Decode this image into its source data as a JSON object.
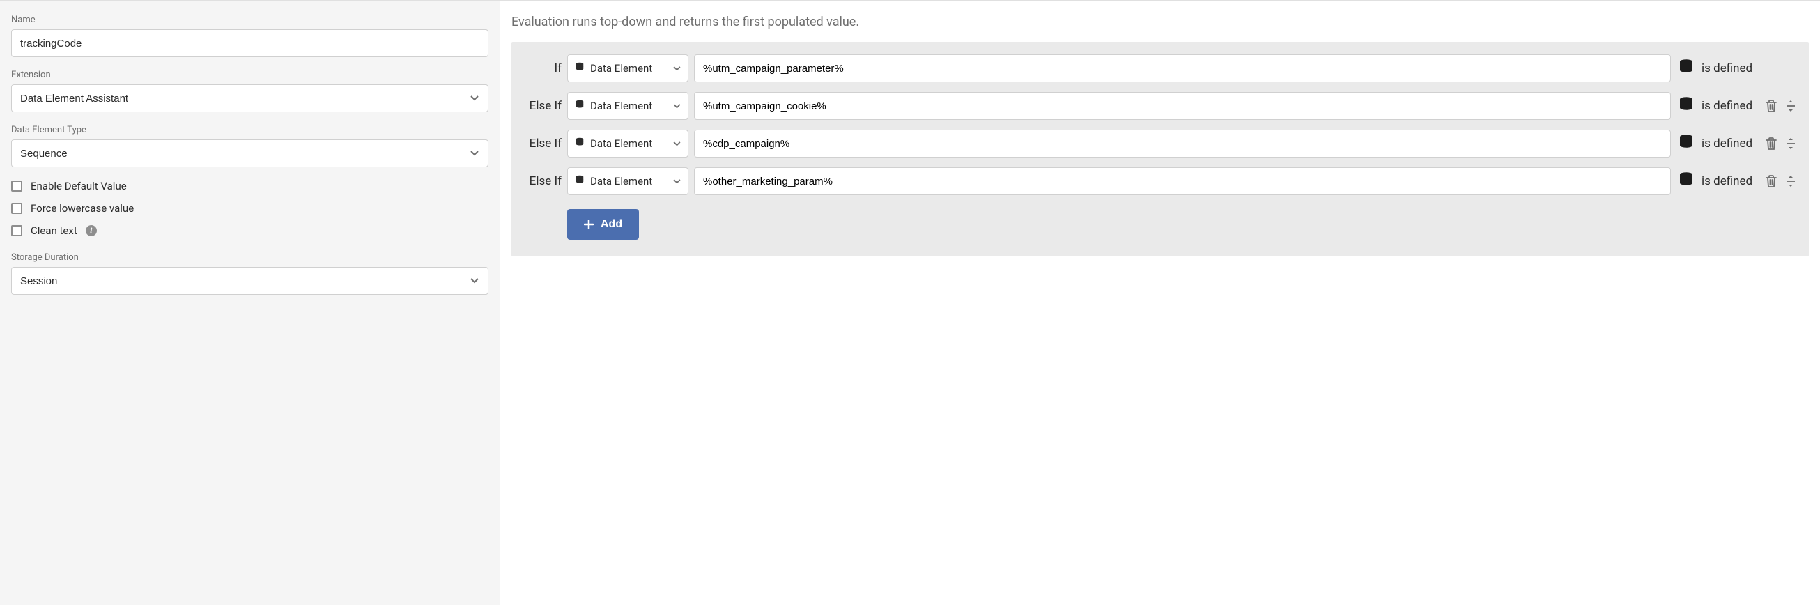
{
  "left": {
    "name_label": "Name",
    "name_value": "trackingCode",
    "extension_label": "Extension",
    "extension_value": "Data Element Assistant",
    "type_label": "Data Element Type",
    "type_value": "Sequence",
    "checkboxes": {
      "default_value": "Enable Default Value",
      "lowercase": "Force lowercase value",
      "clean_text": "Clean text"
    },
    "storage_label": "Storage Duration",
    "storage_value": "Session"
  },
  "right": {
    "help_text": "Evaluation runs top-down and returns the first populated value.",
    "type_option": "Data Element",
    "defined_text": "is defined",
    "rows": [
      {
        "label": "If",
        "value": "%utm_campaign_parameter%",
        "has_actions": false
      },
      {
        "label": "Else If",
        "value": "%utm_campaign_cookie%",
        "has_actions": true
      },
      {
        "label": "Else If",
        "value": "%cdp_campaign%",
        "has_actions": true
      },
      {
        "label": "Else If",
        "value": "%other_marketing_param%",
        "has_actions": true
      }
    ],
    "add_button": "Add"
  },
  "colors": {
    "panel_bg": "#f5f5f5",
    "block_bg": "#eaeaea",
    "primary_button_bg": "#4b6eaf",
    "border": "#d0d0d0",
    "label_text": "#6e6e6e"
  }
}
